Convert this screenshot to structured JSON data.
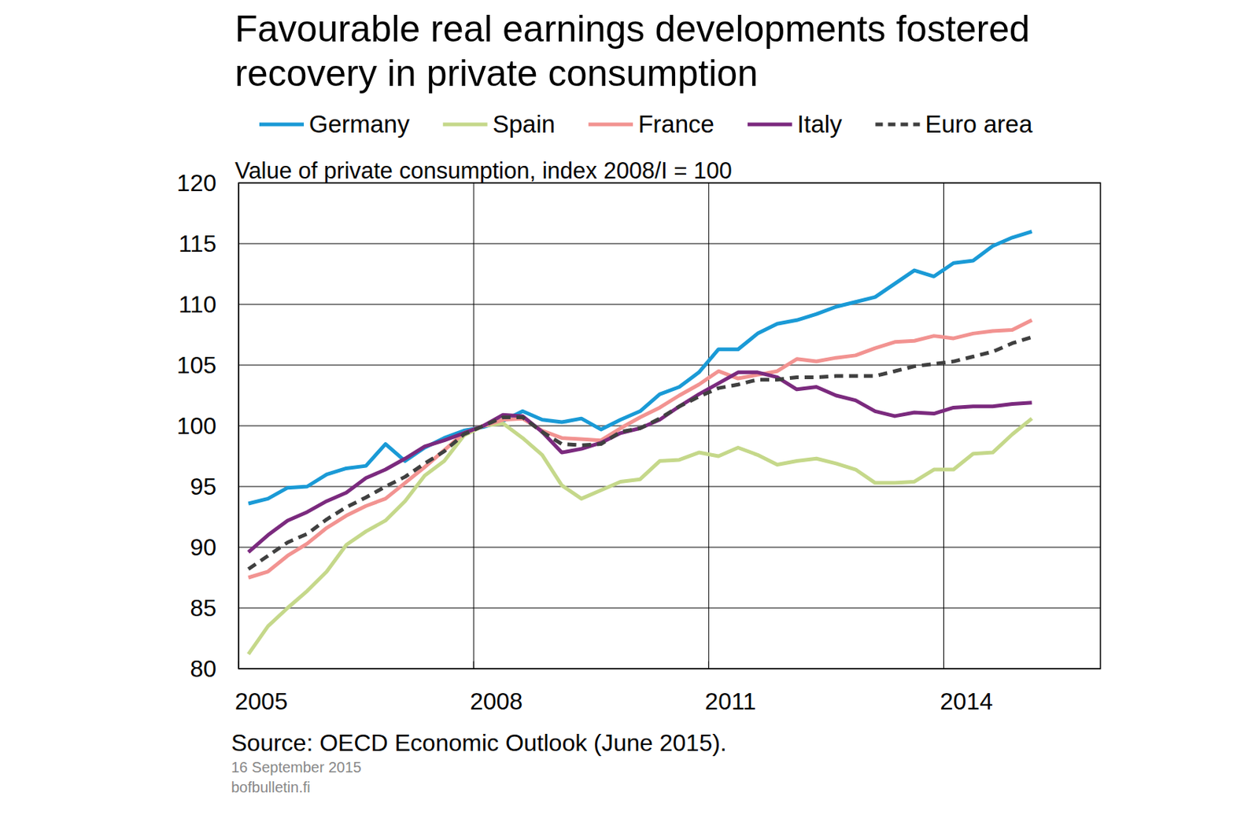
{
  "chart_data": {
    "type": "line",
    "title": "Favourable real earnings developments fostered recovery in private consumption",
    "subtitle": "Value of private consumption, index 2008/I = 100",
    "source": "Source: OECD Economic Outlook (June 2015).",
    "date": "16 September 2015",
    "website": "bofbulletin.fi",
    "x": [
      2005.125,
      2005.375,
      2005.625,
      2005.875,
      2006.125,
      2006.375,
      2006.625,
      2006.875,
      2007.125,
      2007.375,
      2007.625,
      2007.875,
      2008.125,
      2008.375,
      2008.625,
      2008.875,
      2009.125,
      2009.375,
      2009.625,
      2009.875,
      2010.125,
      2010.375,
      2010.625,
      2010.875,
      2011.125,
      2011.375,
      2011.625,
      2011.875,
      2012.125,
      2012.375,
      2012.625,
      2012.875,
      2013.125,
      2013.375,
      2013.625,
      2013.875,
      2014.125,
      2014.375,
      2014.625,
      2014.875,
      2015.125
    ],
    "xlim": [
      2005,
      2016
    ],
    "xticks": [
      2005,
      2008,
      2011,
      2014
    ],
    "ylim": [
      80,
      120
    ],
    "yticks": [
      80,
      85,
      90,
      95,
      100,
      105,
      110,
      115,
      120
    ],
    "grid": true,
    "legend": "top",
    "series": [
      {
        "name": "Germany",
        "color": "#1a9ad6",
        "line_style": "solid",
        "values": [
          93.6,
          94.0,
          94.9,
          95.0,
          96.0,
          96.5,
          96.7,
          98.5,
          97.1,
          98.2,
          99.0,
          99.6,
          99.9,
          100.4,
          101.2,
          100.5,
          100.3,
          100.6,
          99.7,
          100.5,
          101.2,
          102.6,
          103.2,
          104.4,
          106.3,
          106.3,
          107.6,
          108.4,
          108.7,
          109.2,
          109.8,
          110.2,
          110.6,
          111.7,
          112.8,
          112.3,
          113.4,
          113.6,
          114.8,
          115.5,
          116.0
        ]
      },
      {
        "name": "Spain",
        "color": "#c5d88a",
        "line_style": "solid",
        "values": [
          81.2,
          83.5,
          85.0,
          86.4,
          88.0,
          90.2,
          91.3,
          92.2,
          93.8,
          95.9,
          97.1,
          99.2,
          100.0,
          100.2,
          99.0,
          97.6,
          95.1,
          94.0,
          94.7,
          95.4,
          95.6,
          97.1,
          97.2,
          97.8,
          97.5,
          98.2,
          97.6,
          96.8,
          97.1,
          97.3,
          96.9,
          96.4,
          95.3,
          95.3,
          95.4,
          96.4,
          96.4,
          97.7,
          97.8,
          99.3,
          100.6
        ]
      },
      {
        "name": "France",
        "color": "#f29391",
        "line_style": "solid",
        "values": [
          87.5,
          88.0,
          89.3,
          90.3,
          91.6,
          92.6,
          93.4,
          94.0,
          95.3,
          96.6,
          98.0,
          99.4,
          100.0,
          100.5,
          100.6,
          99.6,
          99.0,
          98.9,
          98.8,
          99.8,
          100.7,
          101.5,
          102.5,
          103.4,
          104.5,
          103.9,
          104.2,
          104.5,
          105.5,
          105.3,
          105.6,
          105.8,
          106.4,
          106.9,
          107.0,
          107.4,
          107.2,
          107.6,
          107.8,
          107.9,
          108.7
        ]
      },
      {
        "name": "Italy",
        "color": "#7b2a7e",
        "line_style": "solid",
        "values": [
          89.6,
          91.0,
          92.2,
          92.9,
          93.8,
          94.5,
          95.7,
          96.4,
          97.3,
          98.3,
          98.8,
          99.4,
          100.0,
          100.9,
          100.8,
          99.5,
          97.8,
          98.1,
          98.6,
          99.4,
          99.8,
          100.5,
          101.6,
          102.6,
          103.5,
          104.4,
          104.4,
          104.0,
          103.0,
          103.2,
          102.5,
          102.1,
          101.2,
          100.8,
          101.1,
          101.0,
          101.5,
          101.6,
          101.6,
          101.8,
          101.9
        ]
      },
      {
        "name": "Euro area",
        "color": "#404040",
        "line_style": "dashed",
        "values": [
          88.2,
          89.3,
          90.4,
          91.1,
          92.3,
          93.3,
          94.1,
          95.0,
          95.8,
          96.9,
          97.9,
          99.3,
          100.0,
          100.7,
          100.7,
          99.5,
          98.5,
          98.4,
          98.5,
          99.5,
          99.8,
          100.6,
          101.6,
          102.4,
          103.1,
          103.4,
          103.8,
          103.8,
          104.0,
          104.0,
          104.1,
          104.1,
          104.1,
          104.5,
          104.9,
          105.1,
          105.3,
          105.7,
          106.1,
          106.8,
          107.3
        ]
      }
    ]
  }
}
